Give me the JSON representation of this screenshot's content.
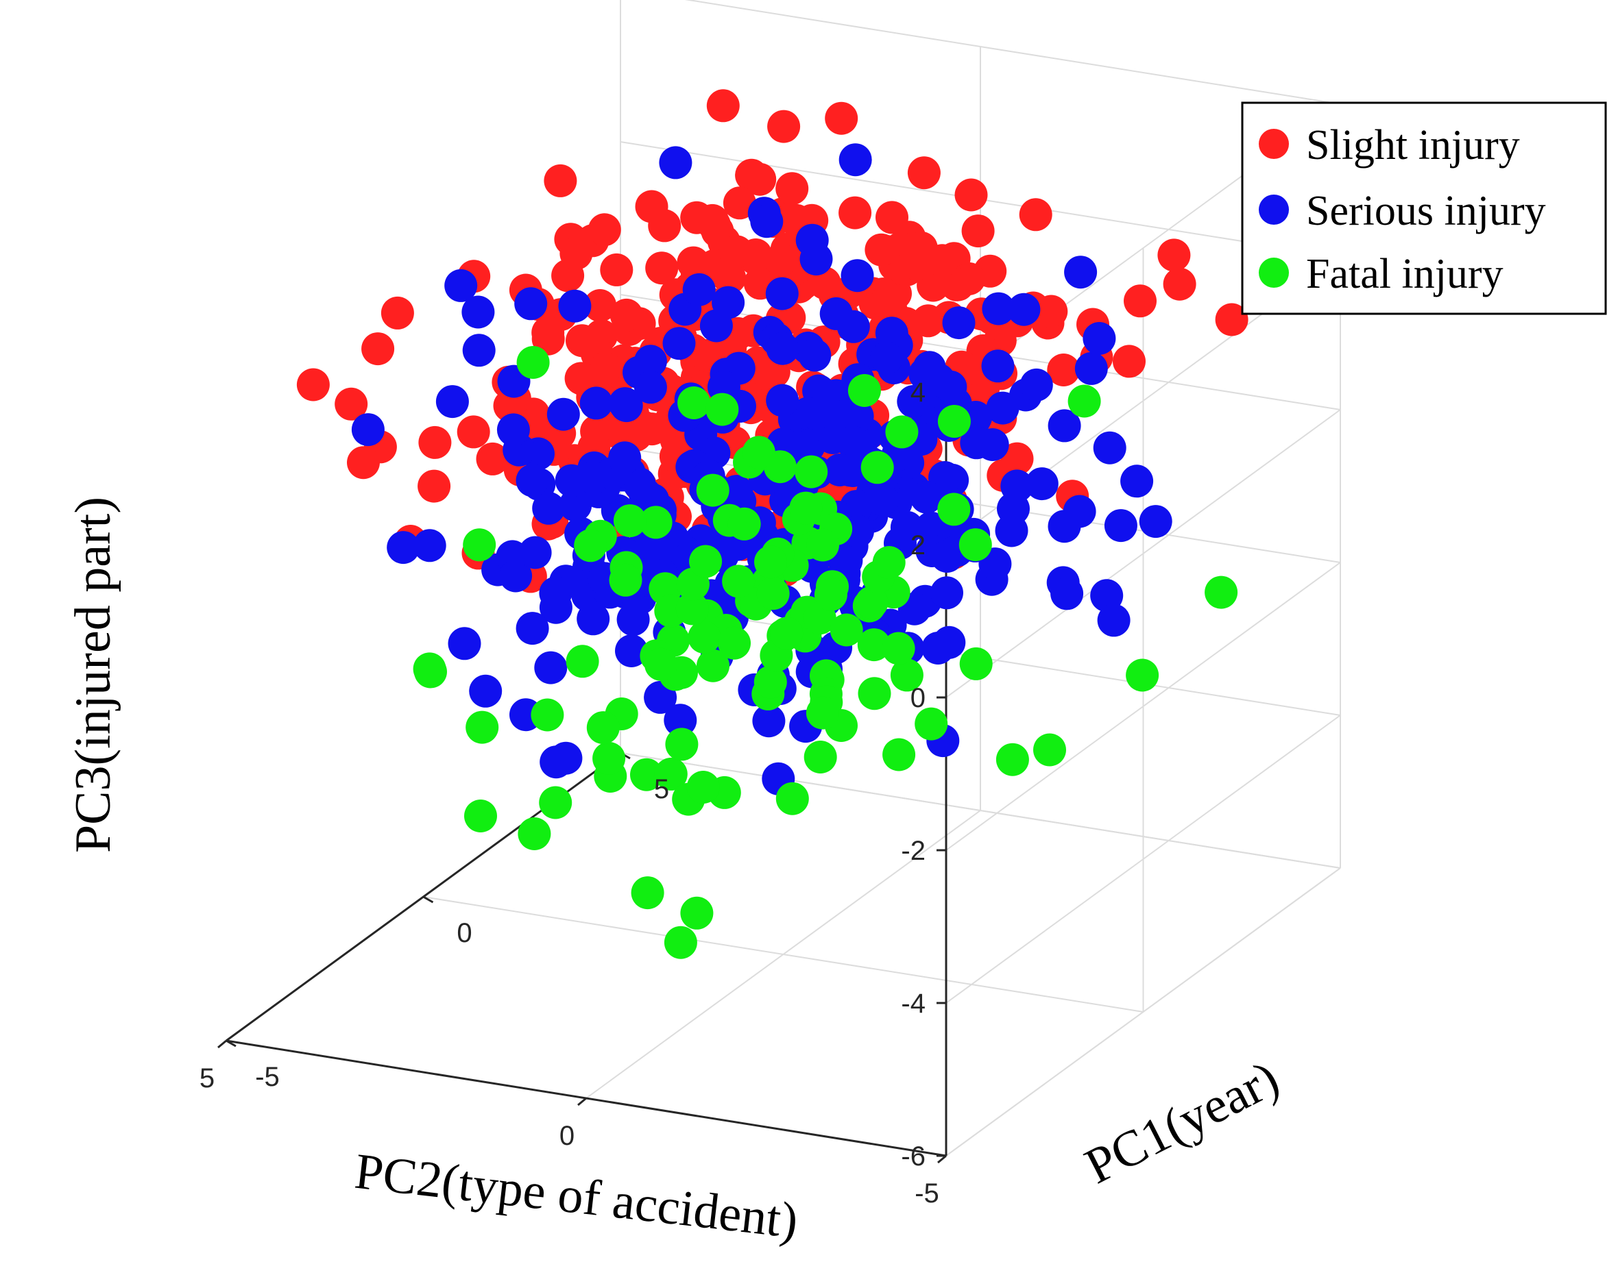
{
  "chart_data": {
    "type": "scatter",
    "projection": "3d",
    "title": "",
    "xlabel": "PC1(year)",
    "ylabel": "PC2(type of accident)",
    "zlabel": "PC3(injured part)",
    "xlim": [
      -5,
      5
    ],
    "ylim": [
      -5,
      5
    ],
    "zlim": [
      -6,
      4
    ],
    "x_ticks": [
      "-5",
      "0",
      "5"
    ],
    "y_ticks": [
      "5",
      "0",
      "-5"
    ],
    "z_ticks": [
      "4",
      "2",
      "0",
      "-2",
      "-4",
      "-6"
    ],
    "grid": true,
    "legend_position": "top-right",
    "series": [
      {
        "name": "Slight injury",
        "color": "#ff2020",
        "count": 330,
        "x_mean": 0.0,
        "x_sd": 2.2,
        "y_mean": 0.2,
        "y_sd": 1.9,
        "z_mean": 1.7,
        "z_sd": 1.0,
        "z_range": [
          -2.3,
          4.3
        ]
      },
      {
        "name": "Serious injury",
        "color": "#1010ee",
        "count": 300,
        "x_mean": 0.0,
        "x_sd": 2.2,
        "y_mean": 0.2,
        "y_sd": 1.9,
        "z_mean": 0.0,
        "z_sd": 1.2,
        "z_range": [
          -3.5,
          3.0
        ]
      },
      {
        "name": "Fatal injury",
        "color": "#11ee11",
        "count": 110,
        "x_mean": 0.0,
        "x_sd": 2.2,
        "y_mean": 0.2,
        "y_sd": 1.9,
        "z_mean": -1.8,
        "z_sd": 1.1,
        "z_range": [
          -4.1,
          0.6
        ]
      }
    ]
  }
}
